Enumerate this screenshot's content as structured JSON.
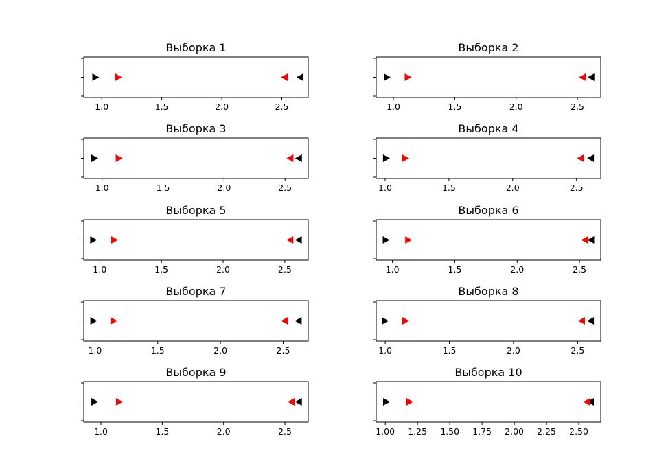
{
  "chart_data": [
    {
      "type": "scatter",
      "title": "Выборка 1",
      "xlim": [
        0.85,
        2.72
      ],
      "xticks": [
        1.0,
        1.5,
        2.0,
        2.5
      ],
      "tick_labels": [
        "1.0",
        "1.5",
        "2.0",
        "2.5"
      ],
      "outer": [
        0.95,
        2.65
      ],
      "inner": [
        1.14,
        2.52
      ]
    },
    {
      "type": "scatter",
      "title": "Выборка 2",
      "xlim": [
        0.86,
        2.69
      ],
      "xticks": [
        1.0,
        1.5,
        2.0,
        2.5
      ],
      "tick_labels": [
        "1.0",
        "1.5",
        "2.0",
        "2.5"
      ],
      "outer": [
        0.95,
        2.61
      ],
      "inner": [
        1.12,
        2.54
      ]
    },
    {
      "type": "scatter",
      "title": "Выборка 3",
      "xlim": [
        0.85,
        2.69
      ],
      "xticks": [
        1.0,
        1.5,
        2.0,
        2.5
      ],
      "tick_labels": [
        "1.0",
        "1.5",
        "2.0",
        "2.5"
      ],
      "outer": [
        0.94,
        2.61
      ],
      "inner": [
        1.14,
        2.54
      ]
    },
    {
      "type": "scatter",
      "title": "Выборка 4",
      "xlim": [
        0.93,
        2.69
      ],
      "xticks": [
        1.0,
        1.5,
        2.0,
        2.5
      ],
      "tick_labels": [
        "1.0",
        "1.5",
        "2.0",
        "2.5"
      ],
      "outer": [
        1.01,
        2.61
      ],
      "inner": [
        1.16,
        2.53
      ]
    },
    {
      "type": "scatter",
      "title": "Выборка 5",
      "xlim": [
        0.87,
        2.69
      ],
      "xticks": [
        1.0,
        1.5,
        2.0,
        2.5
      ],
      "tick_labels": [
        "1.0",
        "1.5",
        "2.0",
        "2.5"
      ],
      "outer": [
        0.95,
        2.61
      ],
      "inner": [
        1.12,
        2.54
      ]
    },
    {
      "type": "scatter",
      "title": "Выборка 6",
      "xlim": [
        0.87,
        2.67
      ],
      "xticks": [
        1.0,
        1.5,
        2.0,
        2.5
      ],
      "tick_labels": [
        "1.0",
        "1.5",
        "2.0",
        "2.5"
      ],
      "outer": [
        0.95,
        2.59
      ],
      "inner": [
        1.13,
        2.54
      ]
    },
    {
      "type": "scatter",
      "title": "Выборка 7",
      "xlim": [
        0.91,
        2.7
      ],
      "xticks": [
        1.0,
        1.5,
        2.0,
        2.5
      ],
      "tick_labels": [
        "1.0",
        "1.5",
        "2.0",
        "2.5"
      ],
      "outer": [
        0.99,
        2.62
      ],
      "inner": [
        1.15,
        2.51
      ]
    },
    {
      "type": "scatter",
      "title": "Выборка 8",
      "xlim": [
        0.93,
        2.68
      ],
      "xticks": [
        1.0,
        1.5,
        2.0,
        2.5
      ],
      "tick_labels": [
        "1.0",
        "1.5",
        "2.0",
        "2.5"
      ],
      "outer": [
        1.0,
        2.6
      ],
      "inner": [
        1.16,
        2.53
      ]
    },
    {
      "type": "scatter",
      "title": "Выборка 9",
      "xlim": [
        0.86,
        2.69
      ],
      "xticks": [
        1.0,
        1.5,
        2.0,
        2.5
      ],
      "tick_labels": [
        "1.0",
        "1.5",
        "2.0",
        "2.5"
      ],
      "outer": [
        0.95,
        2.61
      ],
      "inner": [
        1.15,
        2.55
      ]
    },
    {
      "type": "scatter",
      "title": "Выборка 10",
      "xlim": [
        0.93,
        2.67
      ],
      "xticks": [
        1.0,
        1.25,
        1.5,
        1.75,
        2.0,
        2.25,
        2.5
      ],
      "tick_labels": [
        "1.00",
        "1.25",
        "1.50",
        "1.75",
        "2.00",
        "2.25",
        "2.50"
      ],
      "outer": [
        1.01,
        2.59
      ],
      "inner": [
        1.19,
        2.56
      ]
    }
  ],
  "colors": {
    "outer": "#000000",
    "inner": "#ff0000",
    "axes": "#000000",
    "background": "#ffffff"
  }
}
